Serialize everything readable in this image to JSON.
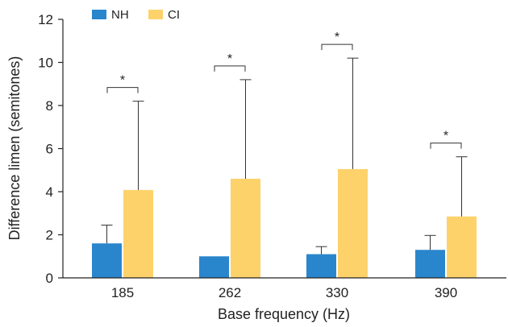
{
  "chart_data": {
    "type": "bar",
    "xlabel": "Base frequency (Hz)",
    "ylabel": "Difference limen (semitones)",
    "ylim": [
      0,
      12
    ],
    "yticks": [
      "0",
      "2",
      "4",
      "6",
      "8",
      "10",
      "12"
    ],
    "categories": [
      "185",
      "262",
      "330",
      "390"
    ],
    "series": [
      {
        "name": "NH",
        "color": "#2a86cc",
        "values": [
          1.6,
          1.0,
          1.1,
          1.3
        ],
        "error_upper": [
          2.45,
          1.0,
          1.45,
          1.97
        ]
      },
      {
        "name": "CI",
        "color": "#fdd26b",
        "values": [
          4.08,
          4.6,
          5.05,
          2.85
        ],
        "error_upper": [
          8.2,
          9.2,
          10.2,
          5.62
        ]
      }
    ],
    "significance": [
      "*",
      "*",
      "*",
      "*"
    ],
    "legend_position": "top-left"
  }
}
